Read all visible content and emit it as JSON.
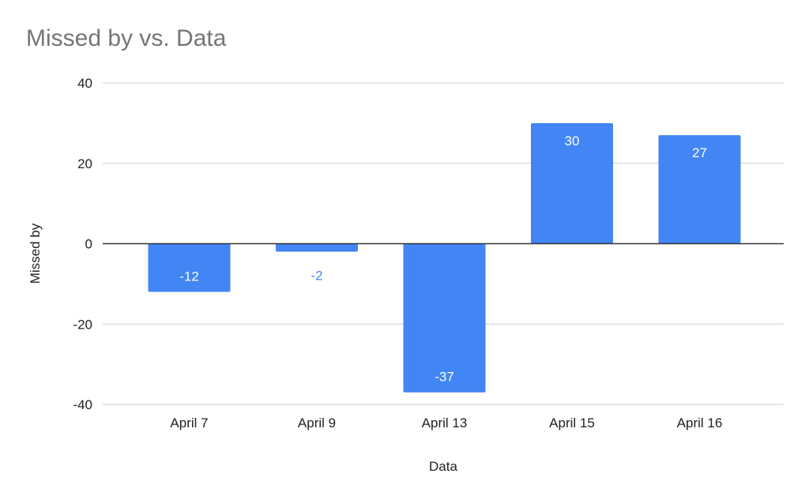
{
  "chart_data": {
    "type": "bar",
    "title": "Missed by vs. Data",
    "xlabel": "Data",
    "ylabel": "Missed by",
    "categories": [
      "April 7",
      "April 9",
      "April 13",
      "April 15",
      "April 16"
    ],
    "values": [
      -12,
      -2,
      -37,
      30,
      27
    ],
    "data_labels": [
      "-12",
      "-2",
      "-37",
      "30",
      "27"
    ],
    "ylim": [
      -40,
      40
    ],
    "yticks": [
      40,
      20,
      0,
      -20,
      -40
    ],
    "ytick_labels": [
      "40",
      "20",
      "0",
      "-20",
      "-40"
    ],
    "grid": true,
    "legend": "none",
    "colors": {
      "bar": "#4285f4",
      "title": "#757575",
      "gridline": "#cccccc",
      "zero_line": "#333333",
      "label_inside": "#ffffff",
      "label_outside": "#4285f4"
    }
  }
}
